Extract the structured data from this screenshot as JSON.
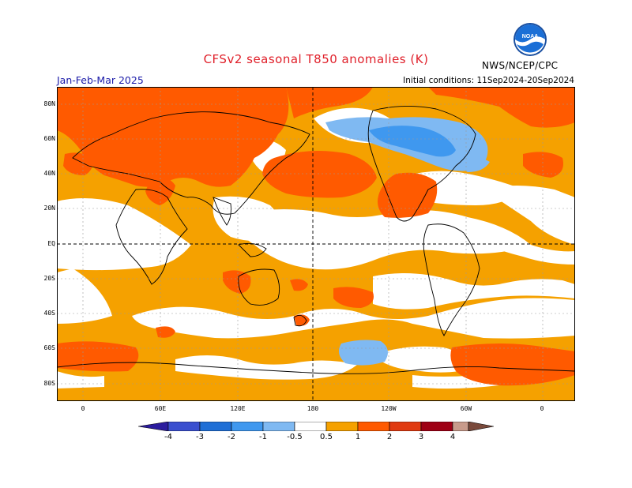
{
  "header": {
    "title": "CFSv2 seasonal T850 anomalies (K)",
    "period": "Jan-Feb-Mar 2025",
    "initial_conditions": "Initial conditions: 11Sep2024-20Sep2024",
    "agency": "NWS/NCEP/CPC",
    "logo_text": "NOAA"
  },
  "axes": {
    "lat_labels": [
      "80N",
      "60N",
      "40N",
      "20N",
      "EQ",
      "20S",
      "40S",
      "60S",
      "80S"
    ],
    "lon_labels": [
      "0",
      "60E",
      "120E",
      "180",
      "120W",
      "60W",
      "0"
    ]
  },
  "colorbar": {
    "labels": [
      "-4",
      "-3",
      "-2",
      "-1",
      "-0.5",
      "0.5",
      "1",
      "2",
      "3",
      "4"
    ],
    "colors": [
      "#2b1c9e",
      "#3a4fcf",
      "#1f6fd6",
      "#3f98ef",
      "#7fb9f2",
      "#ffffff",
      "#f5a100",
      "#ff5a00",
      "#e03a10",
      "#9e0014",
      "#c89b8b",
      "#7a4a3c"
    ]
  },
  "palette": {
    "light_orange": "#f5a100",
    "orange_red": "#ff5a00",
    "deep_red": "#e03a10",
    "light_blue": "#7fb9f2",
    "mid_blue": "#3f98ef",
    "coast": "#000000",
    "grid": "#9a9a9a"
  }
}
